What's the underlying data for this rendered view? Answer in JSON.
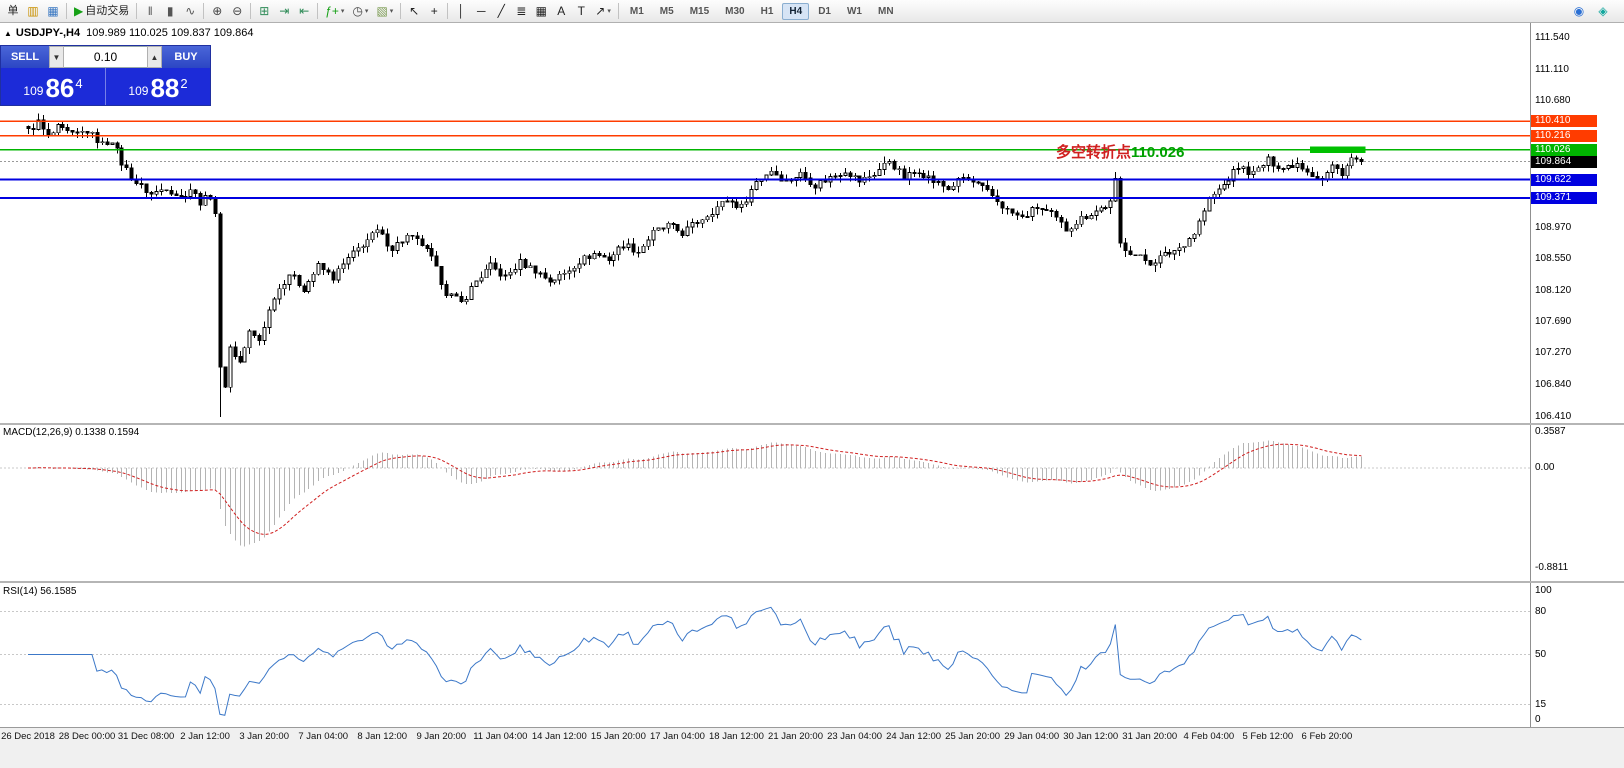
{
  "toolbar": {
    "groups": [
      {
        "items": [
          {
            "name": "new-order-button",
            "label": "单"
          },
          {
            "name": "charts-icon",
            "glyph": "▥",
            "color": "#c89000"
          },
          {
            "name": "profiles-icon",
            "glyph": "▦",
            "color": "#3a78c2"
          }
        ]
      },
      {
        "items": [
          {
            "name": "autotrading-button",
            "glyph": "▶",
            "color": "#15a015",
            "label": "自动交易"
          }
        ]
      },
      {
        "items": [
          {
            "name": "bar-chart-icon",
            "glyph": "‖",
            "color": "#555555"
          },
          {
            "name": "candlestick-chart-icon",
            "glyph": "▮",
            "color": "#555555"
          },
          {
            "name": "line-chart-icon",
            "glyph": "∿",
            "color": "#555555"
          }
        ]
      },
      {
        "items": [
          {
            "name": "zoom-in-icon",
            "glyph": "⊕",
            "color": "#444444"
          },
          {
            "name": "zoom-out-icon",
            "glyph": "⊖",
            "color": "#444444"
          }
        ]
      },
      {
        "items": [
          {
            "name": "tile-windows-icon",
            "glyph": "⊞",
            "color": "#2e8b57"
          },
          {
            "name": "auto-scroll-icon",
            "glyph": "⇥",
            "color": "#2e8b57"
          },
          {
            "name": "chart-shift-icon",
            "glyph": "⇤",
            "color": "#2e8b57"
          }
        ]
      },
      {
        "items": [
          {
            "name": "indicators-button",
            "glyph": "ƒ+",
            "color": "#15a015",
            "dropdown": true
          },
          {
            "name": "periods-button",
            "glyph": "◷",
            "color": "#444444",
            "dropdown": true
          },
          {
            "name": "templates-button",
            "glyph": "▧",
            "color": "#7a9a50",
            "dropdown": true
          }
        ]
      },
      {
        "items": [
          {
            "name": "cursor-icon",
            "glyph": "↖",
            "color": "#222222"
          },
          {
            "name": "crosshair-icon",
            "glyph": "+",
            "color": "#222222"
          }
        ]
      },
      {
        "items": [
          {
            "name": "vertical-line-tool",
            "glyph": "│",
            "color": "#222222"
          },
          {
            "name": "horizontal-line-tool",
            "glyph": "─",
            "color": "#222222"
          },
          {
            "name": "trendline-tool",
            "glyph": "╱",
            "color": "#222222"
          },
          {
            "name": "fibonacci-tool",
            "glyph": "≣",
            "color": "#222222"
          },
          {
            "name": "channel-tool",
            "glyph": "▦",
            "color": "#222222"
          },
          {
            "name": "text-tool",
            "glyph": "A",
            "color": "#222222"
          },
          {
            "name": "label-tool",
            "glyph": "T",
            "color": "#222222"
          },
          {
            "name": "arrows-tool",
            "glyph": "↗",
            "color": "#222222",
            "dropdown": true
          }
        ]
      }
    ],
    "timeframes": [
      "M1",
      "M5",
      "M15",
      "M30",
      "H1",
      "H4",
      "D1",
      "W1",
      "MN"
    ],
    "active_timeframe": "H4",
    "right_icons": [
      {
        "name": "community-icon",
        "glyph": "◉",
        "color": "#2a6fd4"
      },
      {
        "name": "search-icon",
        "glyph": "◈",
        "color": "#13a89e"
      }
    ]
  },
  "chart": {
    "collapse_icon": "▲",
    "title": "USDJPY-,H4",
    "ohlc_text": "109.989 110.025 109.837 109.864",
    "annotation": {
      "text": "多空转折点",
      "value": "110.026"
    },
    "colors": {
      "bull": "#ffffff",
      "bear": "#000000",
      "outline": "#000000",
      "macd_hist": "#b4b4b4",
      "macd_signal": "#d02020",
      "rsi_line": "#3c78c8",
      "annotation_text": "#d02020",
      "annotation_value": "#00a000",
      "highlight": "#00c000",
      "bid_line": "#999999"
    }
  },
  "trade_panel": {
    "sell_label": "SELL",
    "buy_label": "BUY",
    "volume": "0.10",
    "dec_glyph": "▼",
    "inc_glyph": "▲",
    "bid_main": "109",
    "bid_big": "86",
    "bid_sup": "4",
    "ask_main": "109",
    "ask_big": "88",
    "ask_sup": "2"
  },
  "price_axis": {
    "scale": [
      {
        "label": "111.540",
        "value": 111.54
      },
      {
        "label": "111.110",
        "value": 111.11
      },
      {
        "label": "110.680",
        "value": 110.68
      },
      {
        "label": "108.970",
        "value": 108.97
      },
      {
        "label": "108.550",
        "value": 108.55
      },
      {
        "label": "108.120",
        "value": 108.12
      },
      {
        "label": "107.690",
        "value": 107.69
      },
      {
        "label": "107.270",
        "value": 107.27
      },
      {
        "label": "106.840",
        "value": 106.84
      },
      {
        "label": "106.410",
        "value": 106.41
      }
    ],
    "levels": [
      {
        "label": "110.410",
        "value": 110.41,
        "color": "#ff3c00",
        "width": 1.3
      },
      {
        "label": "110.216",
        "value": 110.216,
        "color": "#ff3c00",
        "width": 1.3
      },
      {
        "label": "110.026",
        "value": 110.026,
        "color": "#00b400",
        "width": 1.3
      },
      {
        "label": "109.864",
        "value": 109.864,
        "color": "#000000",
        "width": 1,
        "dash": true,
        "line_color": "#999999"
      },
      {
        "label": "109.622",
        "value": 109.622,
        "color": "#0000e0",
        "width": 2
      },
      {
        "label": "109.371",
        "value": 109.371,
        "color": "#0000e0",
        "width": 2
      }
    ]
  },
  "macd": {
    "label": "MACD(12,26,9)",
    "values": "0.1338 0.1594",
    "axis": [
      {
        "label": "0.3587",
        "value": 0.3587
      },
      {
        "label": "0.00",
        "value": 0
      },
      {
        "label": "-0.8811",
        "value": -0.8811
      }
    ],
    "ylim": [
      -1.0,
      0.38
    ]
  },
  "rsi": {
    "label": "RSI(14)",
    "value": "56.1585",
    "axis": [
      {
        "label": "100",
        "value": 100
      },
      {
        "label": "80",
        "value": 80
      },
      {
        "label": "50",
        "value": 50
      },
      {
        "label": "15",
        "value": 15
      },
      {
        "label": "0",
        "value": 0
      }
    ],
    "levels": [
      80,
      50,
      15
    ],
    "ylim": [
      0,
      100
    ]
  },
  "time_axis": [
    "26 Dec 2018",
    "28 Dec 00:00",
    "31 Dec 08:00",
    "2 Jan 12:00",
    "3 Jan 20:00",
    "7 Jan 04:00",
    "8 Jan 12:00",
    "9 Jan 20:00",
    "11 Jan 04:00",
    "14 Jan 12:00",
    "15 Jan 20:00",
    "17 Jan 04:00",
    "18 Jan 12:00",
    "21 Jan 20:00",
    "23 Jan 04:00",
    "24 Jan 12:00",
    "25 Jan 20:00",
    "29 Jan 04:00",
    "30 Jan 12:00",
    "31 Jan 20:00",
    "4 Feb 04:00",
    "5 Feb 12:00",
    "6 Feb 20:00"
  ],
  "chart_data": {
    "type": "candlestick",
    "symbol": "USDJPY",
    "timeframe": "H4",
    "current_ohlc": {
      "open": 109.989,
      "high": 110.025,
      "low": 109.837,
      "close": 109.864
    },
    "n_candles": 272,
    "last_close": 109.864,
    "crash_low": {
      "index": 39,
      "price": 106.41
    },
    "wiggle": 0.05,
    "visible_range": [
      106.33,
      111.74
    ],
    "label_every": 12,
    "highlight_bar": {
      "from_index": 261,
      "to_index": 271,
      "price": 110.026,
      "height": 6.5
    },
    "indicators": [
      {
        "type": "macd",
        "params": [
          12,
          26,
          9
        ],
        "current": [
          0.1338,
          0.1594
        ]
      },
      {
        "type": "rsi",
        "params": [
          14
        ],
        "current": 56.1585
      }
    ],
    "price_waypoints": [
      [
        0,
        110.28
      ],
      [
        2,
        110.4
      ],
      [
        4,
        110.18
      ],
      [
        6,
        110.32
      ],
      [
        9,
        110.22
      ],
      [
        12,
        110.28
      ],
      [
        15,
        110.1
      ],
      [
        17,
        110.16
      ],
      [
        19,
        109.85
      ],
      [
        22,
        109.58
      ],
      [
        25,
        109.42
      ],
      [
        28,
        109.52
      ],
      [
        31,
        109.38
      ],
      [
        33,
        109.5
      ],
      [
        35,
        109.32
      ],
      [
        37,
        109.4
      ],
      [
        38,
        109.18
      ],
      [
        39,
        107.05
      ],
      [
        40,
        106.85
      ],
      [
        41,
        107.35
      ],
      [
        43,
        107.15
      ],
      [
        45,
        107.55
      ],
      [
        47,
        107.45
      ],
      [
        50,
        108.05
      ],
      [
        53,
        108.35
      ],
      [
        56,
        108.15
      ],
      [
        59,
        108.45
      ],
      [
        62,
        108.3
      ],
      [
        65,
        108.55
      ],
      [
        68,
        108.75
      ],
      [
        71,
        108.92
      ],
      [
        74,
        108.7
      ],
      [
        77,
        108.85
      ],
      [
        80,
        108.75
      ],
      [
        82,
        108.55
      ],
      [
        85,
        108.1
      ],
      [
        88,
        107.95
      ],
      [
        91,
        108.25
      ],
      [
        94,
        108.45
      ],
      [
        97,
        108.3
      ],
      [
        100,
        108.5
      ],
      [
        103,
        108.4
      ],
      [
        106,
        108.25
      ],
      [
        109,
        108.35
      ],
      [
        112,
        108.52
      ],
      [
        115,
        108.62
      ],
      [
        118,
        108.55
      ],
      [
        121,
        108.75
      ],
      [
        124,
        108.65
      ],
      [
        127,
        108.9
      ],
      [
        130,
        109.0
      ],
      [
        133,
        108.9
      ],
      [
        136,
        109.05
      ],
      [
        139,
        109.2
      ],
      [
        142,
        109.35
      ],
      [
        145,
        109.25
      ],
      [
        148,
        109.6
      ],
      [
        151,
        109.75
      ],
      [
        154,
        109.6
      ],
      [
        157,
        109.7
      ],
      [
        160,
        109.55
      ],
      [
        163,
        109.65
      ],
      [
        166,
        109.75
      ],
      [
        169,
        109.6
      ],
      [
        172,
        109.7
      ],
      [
        175,
        109.88
      ],
      [
        178,
        109.65
      ],
      [
        181,
        109.75
      ],
      [
        184,
        109.6
      ],
      [
        187,
        109.5
      ],
      [
        190,
        109.65
      ],
      [
        193,
        109.55
      ],
      [
        196,
        109.4
      ],
      [
        199,
        109.2
      ],
      [
        202,
        109.1
      ],
      [
        205,
        109.25
      ],
      [
        208,
        109.15
      ],
      [
        211,
        108.95
      ],
      [
        214,
        109.1
      ],
      [
        217,
        109.2
      ],
      [
        220,
        109.3
      ],
      [
        221,
        109.6
      ],
      [
        222,
        108.75
      ],
      [
        225,
        108.6
      ],
      [
        228,
        108.5
      ],
      [
        231,
        108.6
      ],
      [
        234,
        108.7
      ],
      [
        237,
        108.9
      ],
      [
        240,
        109.35
      ],
      [
        243,
        109.55
      ],
      [
        246,
        109.8
      ],
      [
        249,
        109.7
      ],
      [
        252,
        109.88
      ],
      [
        255,
        109.78
      ],
      [
        258,
        109.85
      ],
      [
        261,
        109.7
      ],
      [
        263,
        109.62
      ],
      [
        265,
        109.8
      ],
      [
        267,
        109.72
      ],
      [
        269,
        109.9
      ],
      [
        271,
        109.864
      ]
    ]
  }
}
